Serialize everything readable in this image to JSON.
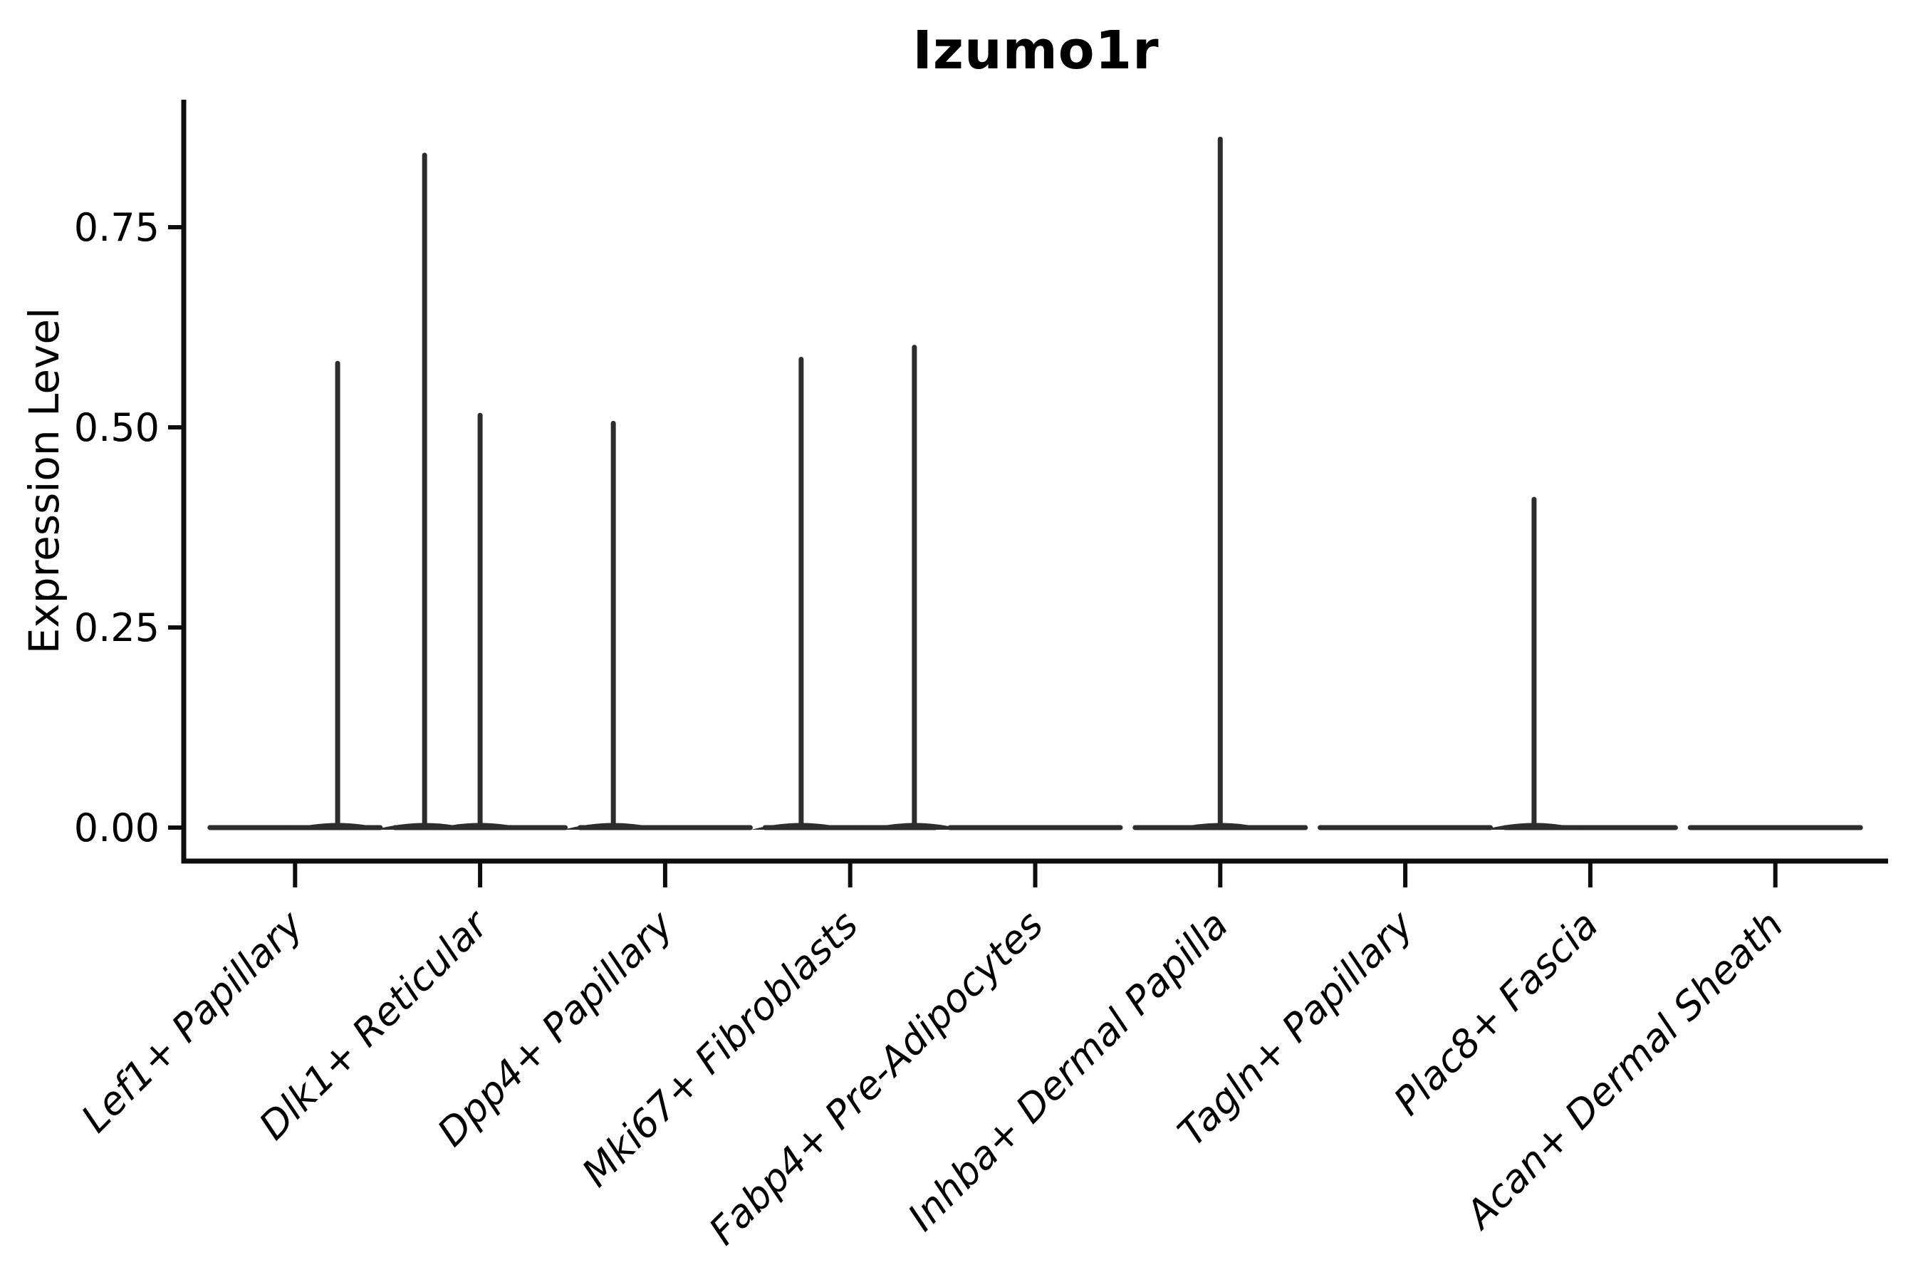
{
  "figure": {
    "title": "Izumo1r",
    "ylabel": "Expression Level"
  },
  "chart_data": {
    "type": "violin",
    "title": "Izumo1r",
    "xlabel": "",
    "ylabel": "Expression Level",
    "categories": [
      "Lef1+ Papillary",
      "Dlk1+ Reticular",
      "Dpp4+ Papillary",
      "Mki67+ Fibroblasts",
      "Fabp4+ Pre-Adipocytes",
      "Inhba+ Dermal Papilla",
      "Tagln+ Papillary",
      "Plac8+ Fascia",
      "Acan+ Dermal Sheath"
    ],
    "ytick_values": [
      0,
      0.25,
      0.5,
      0.75
    ],
    "ytick_labels": [
      "0.00",
      "0.25",
      "0.50",
      "0.75"
    ],
    "ylim": [
      -0.042,
      0.909
    ],
    "grid": false,
    "legend": "none",
    "x_tick_rotation_deg": 45,
    "violin_halfwidth": 0.46,
    "series": [
      {
        "category": "Lef1+ Papillary",
        "baseline": 0,
        "spikes": [
          {
            "x_offset": 0.23,
            "value": 0.58
          }
        ]
      },
      {
        "category": "Dlk1+ Reticular",
        "baseline": 0,
        "spikes": [
          {
            "x_offset": -0.3,
            "value": 0.84
          },
          {
            "x_offset": 0.0,
            "value": 0.515
          }
        ]
      },
      {
        "category": "Dpp4+ Papillary",
        "baseline": 0,
        "spikes": [
          {
            "x_offset": -0.28,
            "value": 0.505
          }
        ]
      },
      {
        "category": "Mki67+ Fibroblasts",
        "baseline": 0,
        "spikes": [
          {
            "x_offset": -0.265,
            "value": 0.585
          },
          {
            "x_offset": 0.347,
            "value": 0.6
          }
        ]
      },
      {
        "category": "Fabp4+ Pre-Adipocytes",
        "baseline": 0,
        "spikes": []
      },
      {
        "category": "Inhba+ Dermal Papilla",
        "baseline": 0,
        "spikes": [
          {
            "x_offset": 0.0,
            "value": 0.86
          }
        ]
      },
      {
        "category": "Tagln+ Papillary",
        "baseline": 0,
        "spikes": []
      },
      {
        "category": "Plac8+ Fascia",
        "baseline": 0,
        "spikes": [
          {
            "x_offset": -0.304,
            "value": 0.41
          }
        ]
      },
      {
        "category": "Acan+ Dermal Sheath",
        "baseline": 0,
        "spikes": []
      }
    ]
  },
  "style": {
    "line_color": "#2d2d2d",
    "axis_color": "#0d0d0d",
    "text_color": "#000000",
    "background": "#ffffff"
  }
}
